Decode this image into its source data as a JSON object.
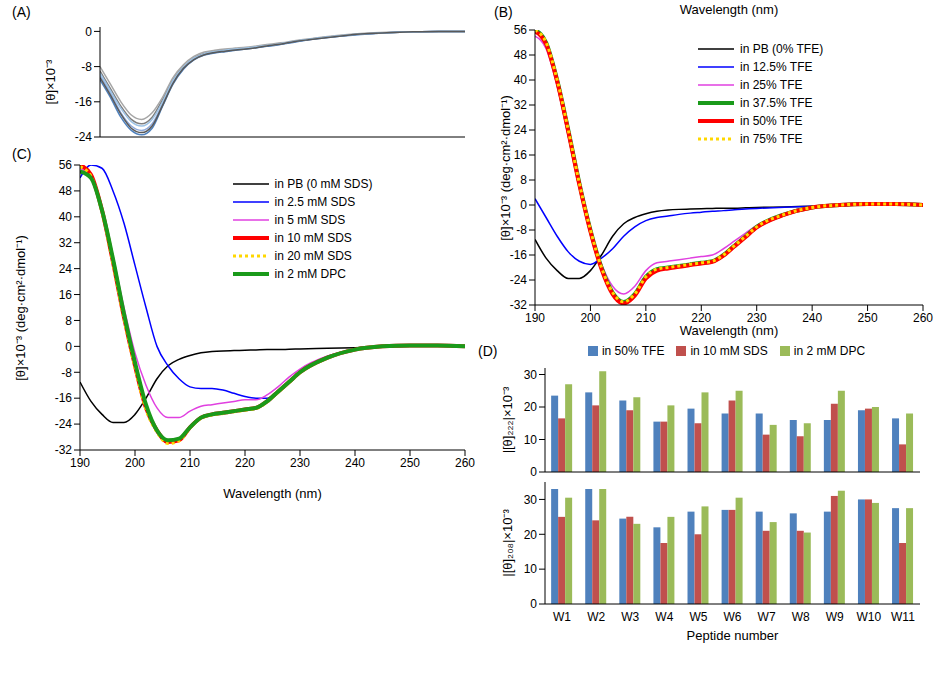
{
  "chart_data": [
    {
      "type": "line",
      "annotations": [
        "(A)"
      ],
      "y_label": "[θ]×10⁻³",
      "x": [
        190,
        192,
        194,
        196,
        198,
        200,
        202,
        204,
        206,
        208,
        210,
        212,
        214,
        216,
        218,
        220,
        222,
        224,
        226,
        228,
        230,
        235,
        240,
        245,
        250,
        255,
        260
      ],
      "xlim": [
        190,
        260
      ],
      "ylim": [
        -24,
        1
      ],
      "yticks": [
        -24,
        -16,
        -8,
        0
      ],
      "tick_labels": "y",
      "series": [
        {
          "color": "#7f7f7f",
          "line_style": "solid",
          "values": [
            -9,
            -13,
            -17,
            -20,
            -21,
            -19.5,
            -15.5,
            -11,
            -8,
            -6,
            -5,
            -4.5,
            -4.2,
            -4,
            -3.8,
            -3.5,
            -3.2,
            -2.9,
            -2.5,
            -2.1,
            -1.8,
            -1.1,
            -0.6,
            -0.3,
            -0.1,
            0,
            0
          ]
        },
        {
          "color": "#8faadc",
          "line_style": "solid",
          "values": [
            -10,
            -14,
            -18.5,
            -21.5,
            -22.5,
            -21,
            -16.5,
            -11.5,
            -8.3,
            -6.3,
            -5.2,
            -4.7,
            -4.4,
            -4.1,
            -3.9,
            -3.6,
            -3.3,
            -3,
            -2.6,
            -2.2,
            -1.9,
            -1.2,
            -0.6,
            -0.3,
            -0.1,
            0,
            0
          ]
        },
        {
          "color": "#a6a6a6",
          "line_style": "solid",
          "values": [
            -8,
            -12,
            -16,
            -19,
            -20,
            -18.5,
            -15,
            -10.5,
            -7.6,
            -5.7,
            -4.7,
            -4.3,
            -4,
            -3.8,
            -3.6,
            -3.3,
            -3,
            -2.7,
            -2.4,
            -2,
            -1.7,
            -1,
            -0.5,
            -0.2,
            -0.1,
            0,
            0
          ]
        },
        {
          "color": "#4f81bd",
          "line_style": "solid",
          "values": [
            -11,
            -15,
            -19.5,
            -22.5,
            -23.5,
            -22,
            -17,
            -12,
            -8.6,
            -6.5,
            -5.4,
            -4.9,
            -4.6,
            -4.3,
            -4,
            -3.7,
            -3.4,
            -3.1,
            -2.7,
            -2.3,
            -1.9,
            -1.2,
            -0.7,
            -0.3,
            -0.1,
            0,
            0
          ]
        },
        {
          "color": "#9dc3e6",
          "line_style": "solid",
          "values": [
            -9.5,
            -13.5,
            -17.5,
            -20.5,
            -21.5,
            -20,
            -16,
            -11.2,
            -8.1,
            -6.1,
            -5.1,
            -4.6,
            -4.3,
            -4,
            -3.8,
            -3.5,
            -3.2,
            -2.9,
            -2.5,
            -2.1,
            -1.8,
            -1.1,
            -0.6,
            -0.3,
            -0.1,
            0,
            0
          ]
        },
        {
          "color": "#595959",
          "line_style": "solid",
          "values": [
            -10.5,
            -14.5,
            -18.8,
            -22,
            -23,
            -21.5,
            -16.8,
            -11.8,
            -8.4,
            -6.4,
            -5.3,
            -4.8,
            -4.5,
            -4.2,
            -4,
            -3.7,
            -3.3,
            -3,
            -2.6,
            -2.2,
            -1.9,
            -1.2,
            -0.6,
            -0.3,
            -0.1,
            0,
            0
          ]
        }
      ]
    },
    {
      "type": "line",
      "annotations": [
        "(B)"
      ],
      "title": "Wavelength (nm)",
      "x_label": "Wavelength (nm)",
      "y_label": "[θ]×10⁻³ (deg·cm²·dmol⁻¹)",
      "x": [
        190,
        192,
        194,
        196,
        198,
        200,
        202,
        204,
        206,
        208,
        210,
        212,
        214,
        216,
        218,
        220,
        222,
        224,
        226,
        228,
        230,
        235,
        240,
        245,
        250,
        255,
        260
      ],
      "xlim": [
        190,
        260
      ],
      "xticks": [
        190,
        200,
        210,
        220,
        230,
        240,
        250,
        260
      ],
      "ylim": [
        -32,
        56
      ],
      "yticks": [
        -32,
        -24,
        -16,
        -8,
        0,
        8,
        16,
        24,
        32,
        40,
        48,
        56
      ],
      "legend": "upper right",
      "series": [
        {
          "name": "in PB (0% TFE)",
          "color": "#000000",
          "line_style": "solid",
          "values": [
            -11,
            -17,
            -21,
            -23.5,
            -23.5,
            -21,
            -16,
            -10,
            -6,
            -4,
            -2.8,
            -2,
            -1.6,
            -1.4,
            -1.3,
            -1.2,
            -1.1,
            -1,
            -1,
            -0.9,
            -0.8,
            -0.6,
            -0.4,
            -0.2,
            0,
            0,
            0
          ]
        },
        {
          "name": "in 12.5% TFE",
          "color": "#0000ff",
          "line_style": "solid",
          "values": [
            2,
            -4,
            -10,
            -15,
            -18,
            -19,
            -17,
            -14,
            -10,
            -7,
            -5,
            -4,
            -3.5,
            -3,
            -2.6,
            -2.3,
            -2,
            -1.8,
            -1.5,
            -1.3,
            -1.1,
            -0.7,
            -0.4,
            -0.2,
            0,
            0,
            0
          ]
        },
        {
          "name": "in 25% TFE",
          "color": "#e040e0",
          "line_style": "solid",
          "values": [
            54,
            50,
            38,
            22,
            6,
            -8,
            -19,
            -26,
            -28.5,
            -26,
            -21,
            -18.5,
            -18,
            -17.5,
            -17,
            -16.5,
            -16,
            -14,
            -11.5,
            -9,
            -6.5,
            -3,
            -0.8,
            0,
            0.2,
            0.2,
            0
          ]
        },
        {
          "name": "in 37.5% TFE",
          "color": "#1a9a1a",
          "line_style": "thick",
          "values": [
            56,
            52,
            40,
            24,
            7,
            -8,
            -20,
            -28,
            -31,
            -28.5,
            -23,
            -20.5,
            -20,
            -19.5,
            -19,
            -18.5,
            -18,
            -16,
            -13,
            -10,
            -7,
            -3,
            -0.8,
            0,
            0.3,
            0.3,
            0
          ]
        },
        {
          "name": "in 50% TFE",
          "color": "#ff0000",
          "line_style": "thick",
          "values": [
            55.5,
            51.5,
            39.5,
            23.5,
            6.5,
            -8.5,
            -20.5,
            -28.5,
            -31.5,
            -29,
            -23.5,
            -21,
            -20.3,
            -19.8,
            -19.2,
            -18.7,
            -18.2,
            -16.2,
            -13.2,
            -10.2,
            -7.2,
            -3.1,
            -0.8,
            0,
            0.3,
            0.3,
            0
          ]
        },
        {
          "name": "in 75% TFE",
          "color": "#ffd700",
          "line_style": "dotted",
          "values": [
            56,
            52,
            40,
            24,
            7,
            -8,
            -20,
            -28,
            -31,
            -28.5,
            -23,
            -20.5,
            -20,
            -19.5,
            -19,
            -18.5,
            -18,
            -16,
            -13,
            -10,
            -7,
            -3,
            -0.8,
            0,
            0.3,
            0.3,
            0
          ]
        }
      ]
    },
    {
      "type": "line",
      "annotations": [
        "(C)"
      ],
      "x_label": "Wavelength (nm)",
      "y_label": "[θ]×10⁻³ (deg·cm²·dmol⁻¹)",
      "x": [
        190,
        192,
        194,
        196,
        198,
        200,
        202,
        204,
        206,
        208,
        210,
        212,
        214,
        216,
        218,
        220,
        222,
        224,
        226,
        228,
        230,
        235,
        240,
        245,
        250,
        255,
        260
      ],
      "xlim": [
        190,
        260
      ],
      "xticks": [
        190,
        200,
        210,
        220,
        230,
        240,
        250,
        260
      ],
      "ylim": [
        -32,
        56
      ],
      "yticks": [
        -32,
        -24,
        -16,
        -8,
        0,
        8,
        16,
        24,
        32,
        40,
        48,
        56
      ],
      "legend": "upper center",
      "series": [
        {
          "name": "in PB (0 mM SDS)",
          "color": "#000000",
          "line_style": "solid",
          "values": [
            -11,
            -17,
            -21,
            -23.5,
            -23.5,
            -21,
            -16,
            -10,
            -6,
            -4,
            -2.8,
            -2,
            -1.6,
            -1.4,
            -1.3,
            -1.2,
            -1.1,
            -1,
            -1,
            -0.9,
            -0.8,
            -0.6,
            -0.4,
            -0.2,
            0,
            0,
            0
          ]
        },
        {
          "name": "in 2.5 mM SDS",
          "color": "#0000ff",
          "line_style": "solid",
          "values": [
            52,
            56,
            55,
            48,
            38,
            25,
            12,
            0,
            -6,
            -10,
            -12.5,
            -13,
            -13,
            -13.5,
            -14.5,
            -15.5,
            -16,
            -16,
            -14,
            -11,
            -8,
            -3.5,
            -1,
            0,
            0.2,
            0.2,
            0
          ]
        },
        {
          "name": "in 5 mM SDS",
          "color": "#e040e0",
          "line_style": "solid",
          "values": [
            55,
            52,
            42,
            28,
            12,
            -2,
            -12,
            -19,
            -22,
            -22,
            -20,
            -18.5,
            -18,
            -17.5,
            -17,
            -16.5,
            -16.5,
            -15,
            -12.5,
            -9.5,
            -7,
            -3,
            -1,
            0,
            0.2,
            0.2,
            0
          ]
        },
        {
          "name": "in 10 mM SDS",
          "color": "#ff0000",
          "line_style": "thick",
          "values": [
            56,
            53,
            42,
            26,
            9,
            -6,
            -19,
            -26,
            -29.5,
            -29,
            -25,
            -22,
            -21,
            -20.5,
            -20,
            -19.5,
            -19,
            -17,
            -14,
            -11,
            -8,
            -3.5,
            -1,
            0,
            0.3,
            0.3,
            0
          ]
        },
        {
          "name": "in 20 mM SDS",
          "color": "#ffd700",
          "line_style": "dotted",
          "values": [
            55.5,
            52.5,
            41.5,
            25.5,
            8.5,
            -6.5,
            -19.5,
            -26.5,
            -30,
            -29.2,
            -25.2,
            -22.2,
            -21.2,
            -20.7,
            -20.2,
            -19.7,
            -19.2,
            -17.2,
            -14.2,
            -11.2,
            -8.2,
            -3.6,
            -1,
            0,
            0.3,
            0.3,
            0
          ]
        },
        {
          "name": "in 2 mM DPC",
          "color": "#1a9a1a",
          "line_style": "thick",
          "values": [
            54,
            52,
            42,
            27,
            10,
            -5,
            -18,
            -26,
            -29,
            -28.5,
            -25,
            -22,
            -21,
            -20.5,
            -20,
            -19.5,
            -19,
            -17,
            -14,
            -11,
            -8,
            -3.5,
            -1,
            0,
            0.3,
            0.3,
            0
          ]
        }
      ]
    },
    {
      "type": "bar",
      "annotations": [
        "(D)"
      ],
      "x_label": "Peptide number",
      "legend": "top",
      "categories": [
        "W1",
        "W2",
        "W3",
        "W4",
        "W5",
        "W6",
        "W7",
        "W8",
        "W9",
        "W10",
        "W11"
      ],
      "series": [
        {
          "name": "in 50% TFE",
          "color": "#4f81bd"
        },
        {
          "name": "in 10 mM SDS",
          "color": "#c0504d"
        },
        {
          "name": "in 2 mM DPC",
          "color": "#9bbb59"
        }
      ],
      "panels": [
        {
          "y_label": "|[θ]₂₂₂|×10⁻³",
          "ylim": [
            0,
            32
          ],
          "yticks": [
            0,
            10,
            20,
            30
          ],
          "tick_labels": "y",
          "values": [
            [
              23.5,
              24.5,
              22,
              15.5,
              19.5,
              18,
              18,
              16,
              16,
              19,
              16.5
            ],
            [
              16.5,
              20.5,
              19,
              15.5,
              15,
              22,
              11.5,
              11,
              21,
              19.5,
              8.5
            ],
            [
              27,
              31,
              23,
              20.5,
              24.5,
              25,
              14.5,
              15,
              25,
              20,
              18
            ]
          ]
        },
        {
          "y_label": "|[θ]₂₀₈|×10⁻³",
          "ylim": [
            0,
            35
          ],
          "yticks": [
            0,
            10,
            20,
            30
          ],
          "values": [
            [
              33,
              33,
              24.5,
              22,
              26.5,
              27,
              26.5,
              26,
              26.5,
              30,
              27.5
            ],
            [
              25,
              24,
              25,
              17.5,
              20,
              27,
              21,
              21,
              31,
              30,
              17.5
            ],
            [
              30.5,
              33,
              23,
              25,
              28,
              30.5,
              23.5,
              20.5,
              32.5,
              29,
              27.5
            ]
          ]
        }
      ]
    }
  ]
}
